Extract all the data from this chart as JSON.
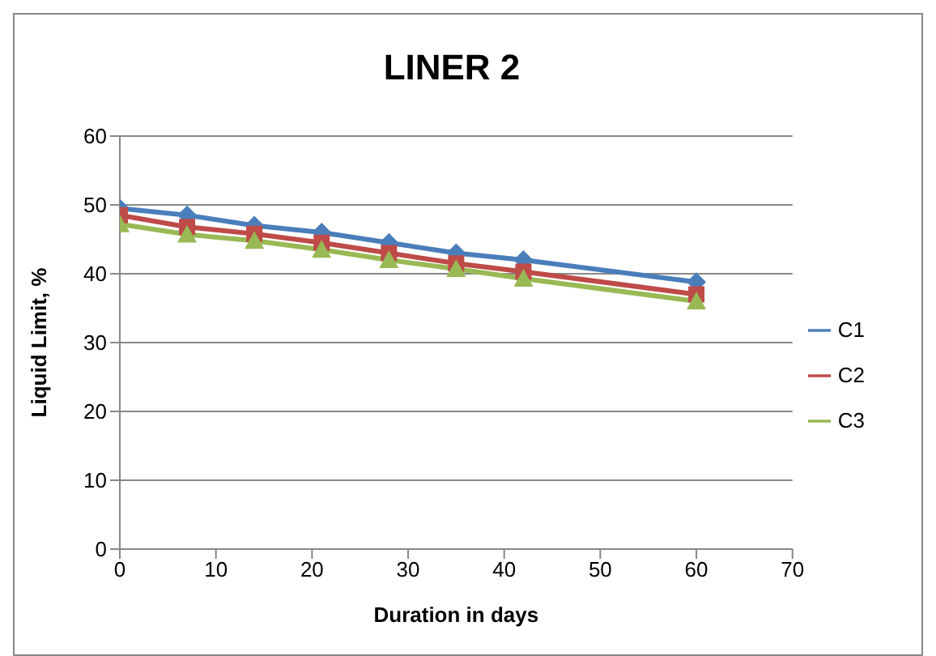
{
  "chart_data": {
    "type": "line",
    "title": "LINER 2",
    "xlabel": "Duration in days",
    "ylabel": "Liquid Limit, %",
    "x": [
      0,
      7,
      14,
      21,
      28,
      35,
      42,
      60
    ],
    "series": [
      {
        "name": "C1",
        "color": "#4a7ebb",
        "marker": "diamond",
        "values": [
          49.5,
          48.5,
          47,
          46,
          44.5,
          43,
          42,
          38.8
        ]
      },
      {
        "name": "C2",
        "color": "#be4b48",
        "marker": "square",
        "values": [
          48.5,
          46.8,
          45.8,
          44.5,
          43,
          41.5,
          40.3,
          37
        ]
      },
      {
        "name": "C3",
        "color": "#98b954",
        "marker": "triangle",
        "values": [
          47.2,
          45.7,
          44.8,
          43.5,
          42,
          40.7,
          39.3,
          36
        ]
      }
    ],
    "xlim": [
      0,
      70
    ],
    "xticks": [
      0,
      10,
      20,
      30,
      40,
      50,
      60,
      70
    ],
    "ylim": [
      0,
      60
    ],
    "yticks": [
      0,
      10,
      20,
      30,
      40,
      50,
      60
    ],
    "grid": "y",
    "legend": "right"
  }
}
